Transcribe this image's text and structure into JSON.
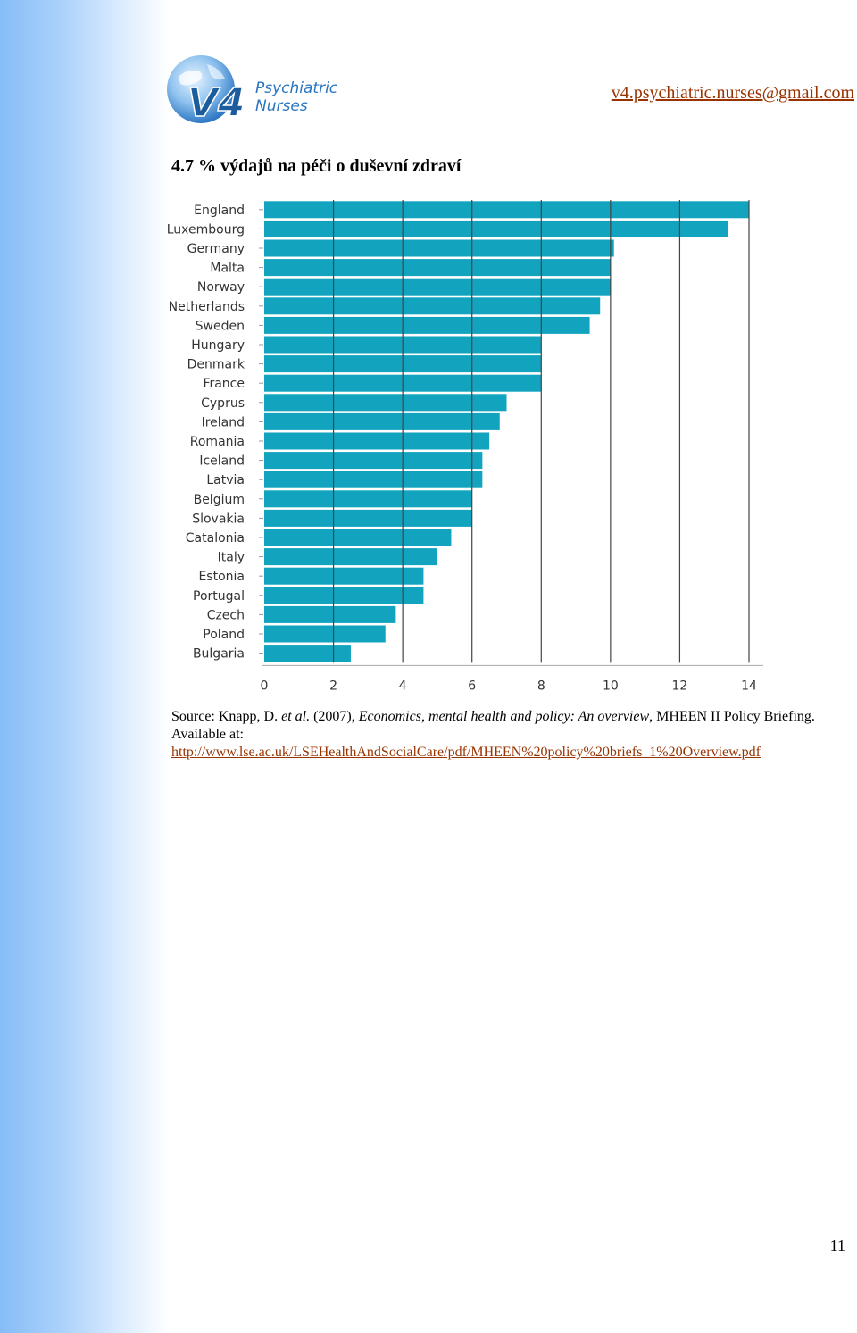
{
  "header": {
    "logo_mark": "V4",
    "logo_line1": "Psychiatric",
    "logo_line2": "Nurses",
    "email": "v4.psychiatric.nurses@gmail.com"
  },
  "heading": "4.7 % výdajů na péči o duševní zdraví",
  "chart_data": {
    "type": "bar",
    "orientation": "horizontal",
    "categories": [
      "England",
      "Luxembourg",
      "Germany",
      "Malta",
      "Norway",
      "Netherlands",
      "Sweden",
      "Hungary",
      "Denmark",
      "France",
      "Cyprus",
      "Ireland",
      "Romania",
      "Iceland",
      "Latvia",
      "Belgium",
      "Slovakia",
      "Catalonia",
      "Italy",
      "Estonia",
      "Portugal",
      "Czech",
      "Poland",
      "Bulgaria"
    ],
    "values": [
      14.0,
      13.4,
      10.1,
      10.0,
      10.0,
      9.7,
      9.4,
      8.0,
      8.0,
      8.0,
      7.0,
      6.8,
      6.5,
      6.3,
      6.3,
      6.0,
      6.0,
      5.4,
      5.0,
      4.6,
      4.6,
      3.8,
      3.5,
      2.5
    ],
    "xlim": [
      0,
      14
    ],
    "xticks": [
      "0",
      "2",
      "4",
      "6",
      "8",
      "10",
      "12",
      "14"
    ],
    "grid": true,
    "bar_color": "#12a4bf",
    "grid_color": "#444444"
  },
  "source": {
    "prefix": "Source: Knapp, D. ",
    "etal": "et al.",
    "year": " (2007), ",
    "title": "Economics, mental health and policy: An overview",
    "suffix": ", MHEEN II Policy Briefing. Available at:",
    "url": "http://www.lse.ac.uk/LSEHealthAndSocialCare/pdf/MHEEN%20policy%20briefs_1%20Overview.pdf"
  },
  "page_number": "11"
}
